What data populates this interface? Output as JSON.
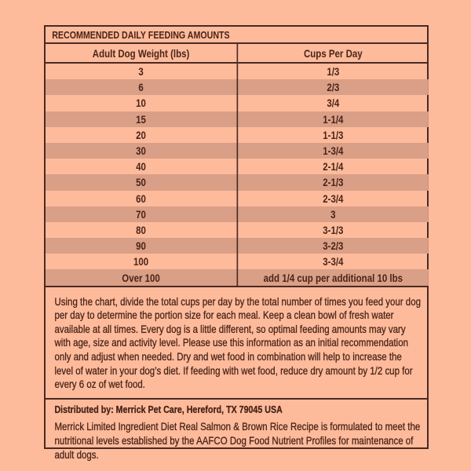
{
  "colors": {
    "background": "#fdbb9c",
    "stripe": "#d99f87",
    "border": "#4a2a22",
    "text": "#4a2418"
  },
  "table": {
    "title": "RECOMMENDED DAILY FEEDING AMOUNTS",
    "headers": [
      "Adult Dog Weight (lbs)",
      "Cups Per Day"
    ],
    "rows": [
      [
        "3",
        "1/3"
      ],
      [
        "6",
        "2/3"
      ],
      [
        "10",
        "3/4"
      ],
      [
        "15",
        "1-1/4"
      ],
      [
        "20",
        "1-1/3"
      ],
      [
        "30",
        "1-3/4"
      ],
      [
        "40",
        "2-1/4"
      ],
      [
        "50",
        "2-1/3"
      ],
      [
        "60",
        "2-3/4"
      ],
      [
        "70",
        "3"
      ],
      [
        "80",
        "3-1/3"
      ],
      [
        "90",
        "3-2/3"
      ],
      [
        "100",
        "3-3/4"
      ],
      [
        "Over 100",
        "add 1/4 cup per additional 10 lbs"
      ]
    ]
  },
  "instructions": "Using the chart, divide the total cups per day by the total number of times you feed your dog per day to determine the portion size for each meal. Keep a clean bowl of fresh water available at all times. Every dog is a little different, so optimal feeding amounts may vary with age, size and activity level. Please use this information as an initial recommendation only and adjust when needed. Dry and wet food in combination will help to increase the level of water in your dog’s diet. If feeding with wet food, reduce dry amount by 1/2 cup for every 6 oz of wet food.",
  "distributor": "Distributed by: Merrick Pet Care, Hereford, TX 79045 USA",
  "statement": "Merrick Limited Ingredient Diet Real Salmon & Brown Rice Recipe is formulated to meet the nutritional levels established by the AAFCO Dog Food Nutrient Profiles for maintenance of adult dogs."
}
